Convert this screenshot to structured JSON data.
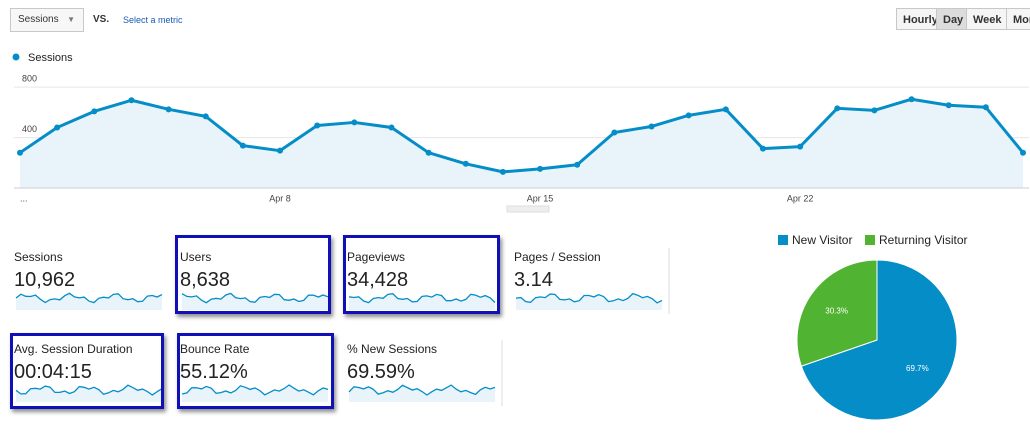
{
  "toolbar": {
    "metric": "Sessions",
    "vs": "VS.",
    "select": "Select a metric",
    "granularity": [
      "Hourly",
      "Day",
      "Week",
      "Month"
    ],
    "active_index": 1
  },
  "chart_data": [
    {
      "type": "line",
      "categories": [
        "...",
        null,
        null,
        null,
        null,
        null,
        null,
        "Apr 8",
        null,
        null,
        null,
        null,
        null,
        null,
        "Apr 15",
        null,
        null,
        null,
        null,
        null,
        null,
        "Apr 22",
        null,
        null,
        null,
        null,
        null,
        null
      ],
      "series": [
        {
          "name": "Sessions",
          "color": "#058dc7",
          "values": [
            280,
            480,
            608,
            696,
            624,
            568,
            336,
            296,
            496,
            520,
            480,
            280,
            192,
            128,
            152,
            184,
            440,
            488,
            576,
            624,
            312,
            328,
            632,
            616,
            704,
            656,
            640,
            280
          ]
        }
      ],
      "ylim": [
        0,
        920
      ],
      "yticks": [
        400,
        800
      ],
      "grid": true
    },
    {
      "type": "pie",
      "categories": [
        "New Visitor",
        "Returning Visitor"
      ],
      "values": [
        69.7,
        30.3
      ],
      "value_labels": [
        "69.7%",
        "30.3%"
      ],
      "colors": [
        "#058dc7",
        "#50b432"
      ]
    }
  ],
  "metrics": [
    {
      "label": "Sessions",
      "value": "10,962",
      "highlighted": false
    },
    {
      "label": "Users",
      "value": "8,638",
      "highlighted": true
    },
    {
      "label": "Pageviews",
      "value": "34,428",
      "highlighted": true
    },
    {
      "label": "Pages / Session",
      "value": "3.14",
      "highlighted": false
    },
    {
      "label": "Avg. Session Duration",
      "value": "00:04:15",
      "highlighted": true
    },
    {
      "label": "Bounce Rate",
      "value": "55.12%",
      "highlighted": true
    },
    {
      "label": "% New Sessions",
      "value": "69.59%",
      "highlighted": false
    }
  ]
}
